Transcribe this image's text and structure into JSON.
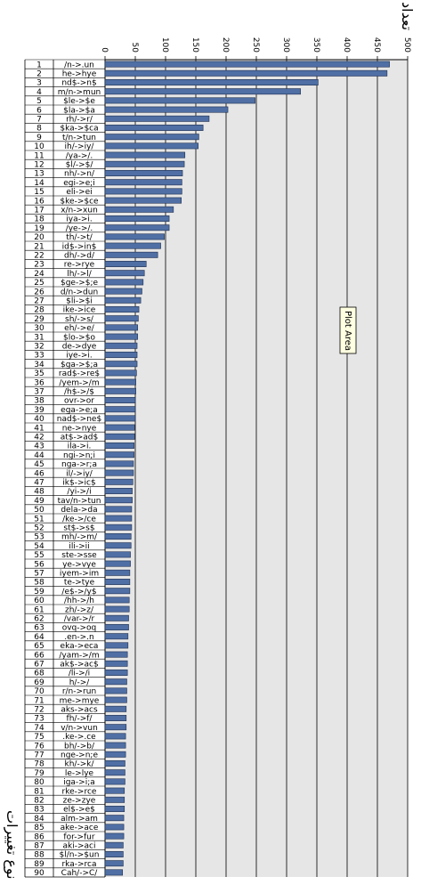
{
  "chart_data": {
    "type": "bar",
    "orientation": "horizontal",
    "title": "تعداد",
    "ylabel": "نوع تغییرات",
    "xlim": [
      0,
      500
    ],
    "x_ticks": [
      "0",
      "50",
      "100",
      "150",
      "200",
      "250",
      "300",
      "350",
      "400",
      "450",
      "500"
    ],
    "grid": true,
    "tooltip": "Plot Area",
    "bar_color": "#4F6FA5",
    "plot_background": "#E6E6E6",
    "rows": [
      {
        "n": "1",
        "label": "/n->.un",
        "value": 470
      },
      {
        "n": "2",
        "label": "he->hye",
        "value": 466
      },
      {
        "n": "3",
        "label": "nd$->n$",
        "value": 352
      },
      {
        "n": "4",
        "label": "m/n->mun",
        "value": 323
      },
      {
        "n": "5",
        "label": "$le->$e",
        "value": 248
      },
      {
        "n": "6",
        "label": "$la->$a",
        "value": 203
      },
      {
        "n": "7",
        "label": "rh/->r/",
        "value": 172
      },
      {
        "n": "8",
        "label": "$ka->$ca",
        "value": 162
      },
      {
        "n": "9",
        "label": "t/n->tun",
        "value": 155
      },
      {
        "n": "10",
        "label": "ih/->iy/",
        "value": 154
      },
      {
        "n": "11",
        "label": "/ya->/.",
        "value": 132
      },
      {
        "n": "12",
        "label": "$l/->$/",
        "value": 131
      },
      {
        "n": "13",
        "label": "nh/->n/",
        "value": 128
      },
      {
        "n": "14",
        "label": "egi->e;i",
        "value": 127
      },
      {
        "n": "15",
        "label": "eli->ei",
        "value": 127
      },
      {
        "n": "16",
        "label": "$ke->$ce",
        "value": 126
      },
      {
        "n": "17",
        "label": "x/n->xun",
        "value": 113
      },
      {
        "n": "18",
        "label": "iya->i.",
        "value": 106
      },
      {
        "n": "19",
        "label": "/ye->/.",
        "value": 106
      },
      {
        "n": "20",
        "label": "th/->t/",
        "value": 98
      },
      {
        "n": "21",
        "label": "id$->in$",
        "value": 92
      },
      {
        "n": "22",
        "label": "dh/->d/",
        "value": 87
      },
      {
        "n": "23",
        "label": "re->rye",
        "value": 68
      },
      {
        "n": "24",
        "label": "lh/->l/",
        "value": 65
      },
      {
        "n": "25",
        "label": "$ge->$;e",
        "value": 63
      },
      {
        "n": "26",
        "label": "d/n->dun",
        "value": 61
      },
      {
        "n": "27",
        "label": "$li->$i",
        "value": 59
      },
      {
        "n": "28",
        "label": "ike->ice",
        "value": 56
      },
      {
        "n": "29",
        "label": "sh/->s/",
        "value": 55
      },
      {
        "n": "30",
        "label": "eh/->e/",
        "value": 54
      },
      {
        "n": "31",
        "label": "$lo->$o",
        "value": 54
      },
      {
        "n": "32",
        "label": "de->dye",
        "value": 53
      },
      {
        "n": "33",
        "label": "iye->i.",
        "value": 53
      },
      {
        "n": "34",
        "label": "$ga->$;a",
        "value": 53
      },
      {
        "n": "35",
        "label": "rad$->re$",
        "value": 52
      },
      {
        "n": "36",
        "label": "/yem->/m",
        "value": 51
      },
      {
        "n": "37",
        "label": "/h$->/$",
        "value": 51
      },
      {
        "n": "38",
        "label": "ovr->or",
        "value": 50
      },
      {
        "n": "39",
        "label": "ega->e;a",
        "value": 50
      },
      {
        "n": "40",
        "label": "nad$->ne$",
        "value": 50
      },
      {
        "n": "41",
        "label": "ne->nye",
        "value": 49
      },
      {
        "n": "42",
        "label": "at$->ad$",
        "value": 49
      },
      {
        "n": "43",
        "label": "ila->i.",
        "value": 48
      },
      {
        "n": "44",
        "label": "ngi->n;i",
        "value": 48
      },
      {
        "n": "45",
        "label": "nga->r;a",
        "value": 47
      },
      {
        "n": "46",
        "label": "il/->iy/",
        "value": 47
      },
      {
        "n": "47",
        "label": "ik$->ic$",
        "value": 46
      },
      {
        "n": "48",
        "label": "/yi->/i",
        "value": 45
      },
      {
        "n": "49",
        "label": "tav/n->tun",
        "value": 45
      },
      {
        "n": "50",
        "label": "dela->da",
        "value": 44
      },
      {
        "n": "51",
        "label": "/ke->/ce",
        "value": 44
      },
      {
        "n": "52",
        "label": "st$->s$",
        "value": 44
      },
      {
        "n": "53",
        "label": "mh/->m/",
        "value": 43
      },
      {
        "n": "54",
        "label": "ili->ii",
        "value": 43
      },
      {
        "n": "55",
        "label": "ste->sse",
        "value": 42
      },
      {
        "n": "56",
        "label": "ye->vye",
        "value": 42
      },
      {
        "n": "57",
        "label": "iyem->im",
        "value": 41
      },
      {
        "n": "58",
        "label": "te->tye",
        "value": 41
      },
      {
        "n": "59",
        "label": "/e$->/y$",
        "value": 41
      },
      {
        "n": "60",
        "label": "/hh->/h",
        "value": 40
      },
      {
        "n": "61",
        "label": "zh/->z/",
        "value": 40
      },
      {
        "n": "62",
        "label": "/var->/r",
        "value": 39
      },
      {
        "n": "63",
        "label": "ovq->oq",
        "value": 39
      },
      {
        "n": "64",
        "label": ".en->.n",
        "value": 38
      },
      {
        "n": "65",
        "label": "eka->eca",
        "value": 38
      },
      {
        "n": "66",
        "label": "/yam->/m",
        "value": 37
      },
      {
        "n": "67",
        "label": "ak$->ac$",
        "value": 37
      },
      {
        "n": "68",
        "label": "/li->/i",
        "value": 37
      },
      {
        "n": "69",
        "label": "h/->/",
        "value": 36
      },
      {
        "n": "70",
        "label": "r/n->run",
        "value": 36
      },
      {
        "n": "71",
        "label": "me->mye",
        "value": 36
      },
      {
        "n": "72",
        "label": "aks->acs",
        "value": 35
      },
      {
        "n": "73",
        "label": "fh/->f/",
        "value": 35
      },
      {
        "n": "74",
        "label": "v/n->vun",
        "value": 35
      },
      {
        "n": "75",
        "label": ".ke->.ce",
        "value": 34
      },
      {
        "n": "76",
        "label": "bh/->b/",
        "value": 34
      },
      {
        "n": "77",
        "label": "nge->n;e",
        "value": 34
      },
      {
        "n": "78",
        "label": "kh/->k/",
        "value": 33
      },
      {
        "n": "79",
        "label": "le->lye",
        "value": 33
      },
      {
        "n": "80",
        "label": "iga->i;a",
        "value": 33
      },
      {
        "n": "81",
        "label": "rke->rce",
        "value": 32
      },
      {
        "n": "82",
        "label": "ze->zye",
        "value": 32
      },
      {
        "n": "83",
        "label": "el$->e$",
        "value": 32
      },
      {
        "n": "84",
        "label": "alm->am",
        "value": 31
      },
      {
        "n": "85",
        "label": "ake->ace",
        "value": 31
      },
      {
        "n": "86",
        "label": "for->fur",
        "value": 31
      },
      {
        "n": "87",
        "label": "aki->aci",
        "value": 30
      },
      {
        "n": "88",
        "label": "$l/n->$un",
        "value": 30
      },
      {
        "n": "89",
        "label": "rka->rca",
        "value": 30
      },
      {
        "n": "90",
        "label": "Cah/->C/",
        "value": 29
      }
    ]
  }
}
